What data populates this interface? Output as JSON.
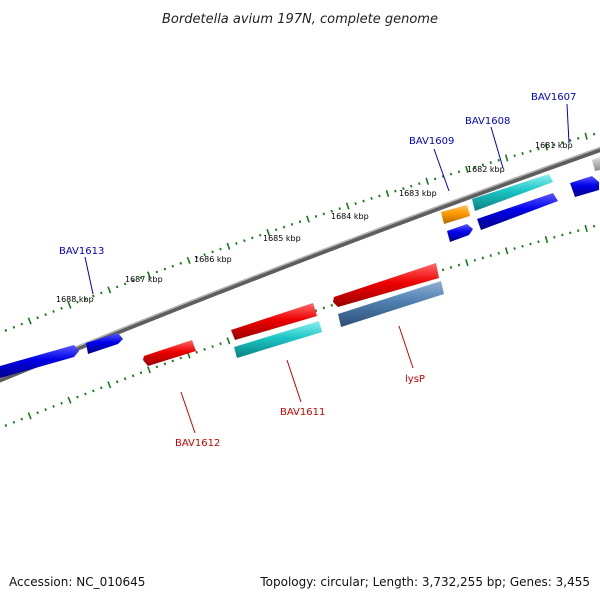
{
  "title": "Bordetella avium 197N, complete genome",
  "footer": {
    "accession": "Accession: NC_010645",
    "summary": "Topology: circular; Length: 3,732,255 bp; Genes: 3,455"
  },
  "colors": {
    "forward_label": "#0000cc",
    "reverse_label": "#cc0000",
    "backbone": "#8a8a8a",
    "tick": "#1a7a1a"
  },
  "scale_labels": [
    "1681 kbp",
    "1682 kbp",
    "1683 kbp",
    "1684 kbp",
    "1685 kbp",
    "1686 kbp",
    "1687 kbp",
    "1688 kbp"
  ],
  "gene_labels": {
    "forward": [
      "BAV1607",
      "BAV1608",
      "BAV1609",
      "BAV1613"
    ],
    "reverse": [
      "lysP",
      "BAV1611",
      "BAV1612"
    ]
  }
}
